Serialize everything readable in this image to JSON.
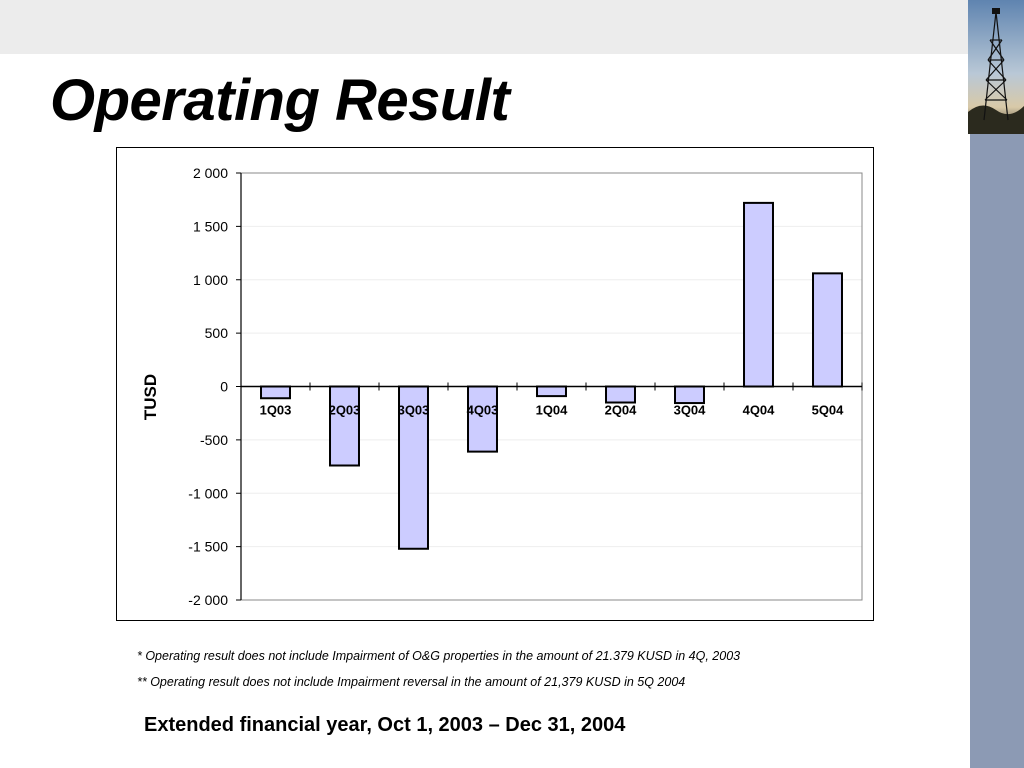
{
  "slide": {
    "title": "Operating Result",
    "footnotes": [
      "*   Operating result does not include Impairment of O&G properties in the amount of 21.379 KUSD in 4Q, 2003",
      "**  Operating result does not include Impairment reversal in the amount of 21,379 KUSD in 5Q 2004"
    ],
    "period_note": "Extended financial year, Oct 1, 2003 – Dec 31, 2004",
    "photo": "oil-derrick-photo"
  },
  "colors": {
    "bar_fill": "#ccccff",
    "bar_stroke": "#000000",
    "top_band": "#ececec",
    "side_bar": "#8c9ab4"
  },
  "chart_data": {
    "type": "bar",
    "title": "",
    "xlabel": "",
    "ylabel": "TUSD",
    "categories": [
      "1Q03",
      "2Q03",
      "3Q03",
      "4Q03",
      "1Q04",
      "2Q04",
      "3Q04",
      "4Q04",
      "5Q04"
    ],
    "values": [
      -110,
      -740,
      -1520,
      -610,
      -90,
      -150,
      -155,
      1720,
      1060
    ],
    "ylim": [
      -2000,
      2000
    ],
    "yticks": [
      2000,
      1500,
      1000,
      500,
      0,
      -500,
      -1000,
      -1500,
      -2000
    ],
    "ytick_labels": [
      "2 000",
      "1 500",
      "1 000",
      "500",
      "0",
      "-500",
      "-1 000",
      "-1 500",
      "-2 000"
    ],
    "grid": true,
    "legend": "none"
  }
}
